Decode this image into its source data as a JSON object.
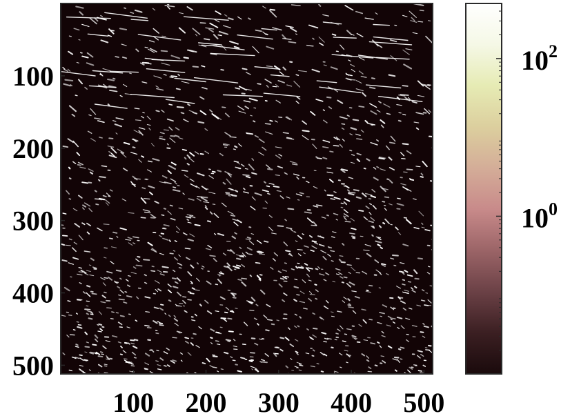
{
  "chart_data": {
    "type": "heatmap",
    "title": "",
    "xlabel": "",
    "ylabel": "",
    "xlim": [
      0,
      512
    ],
    "ylim": [
      0,
      512
    ],
    "x_reversed": false,
    "y_reversed": true,
    "xticks": [
      100,
      200,
      300,
      400,
      500
    ],
    "xtick_labels": [
      "100",
      "200",
      "300",
      "400",
      "500"
    ],
    "yticks": [
      100,
      200,
      300,
      400,
      500
    ],
    "ytick_labels": [
      "100",
      "200",
      "300",
      "400",
      "500"
    ],
    "grid": false,
    "colorbar": {
      "scale": "log",
      "range": [
        0.01,
        500
      ],
      "ticks": [
        1,
        100
      ],
      "tick_labels": [
        {
          "base": "10",
          "exponent": "0"
        },
        {
          "base": "10",
          "exponent": "2"
        }
      ],
      "colormap": [
        "#1a0a0c",
        "#3b1f22",
        "#6b4146",
        "#9b6467",
        "#c88a8a",
        "#d4ad98",
        "#dccf9e",
        "#e6ebb4",
        "#f5f8e6",
        "#ffffff"
      ]
    },
    "background_color": "#120406",
    "feature_color": "#ffffff"
  }
}
